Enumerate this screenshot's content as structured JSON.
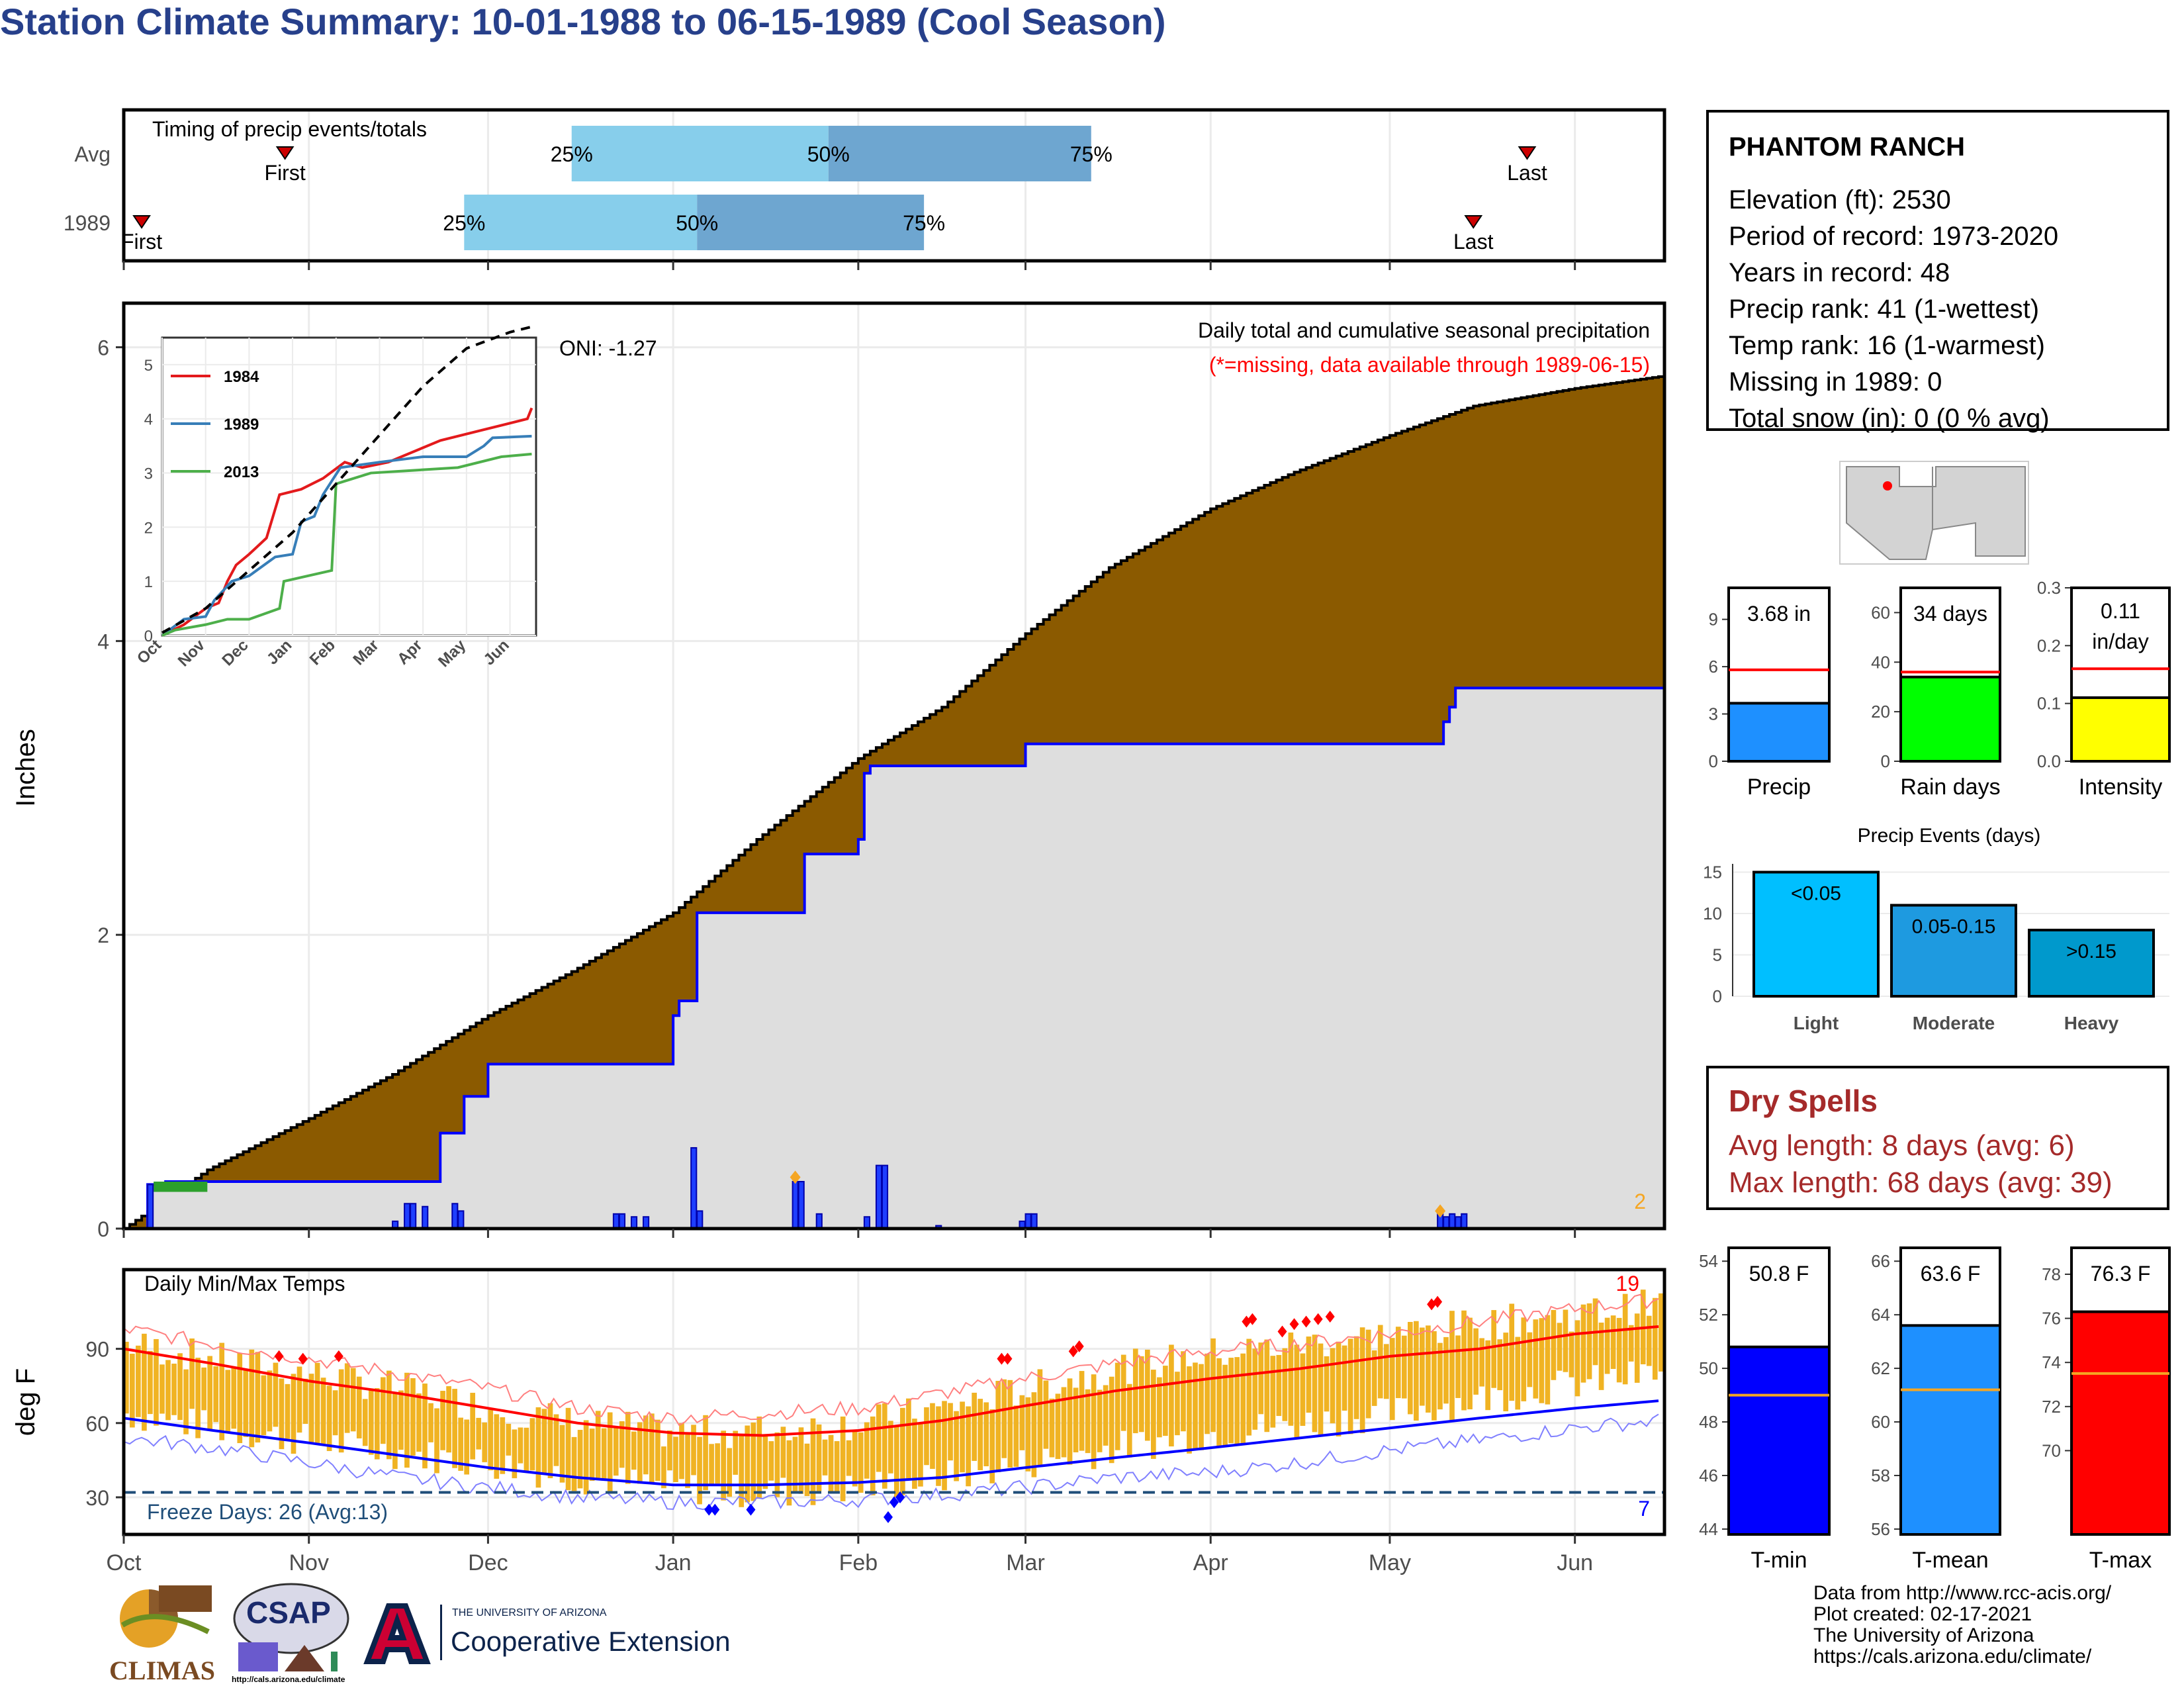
{
  "title": "Station Climate Summary: 10-01-1988 to 06-15-1989 (Cool Season)",
  "station": {
    "name": "PHANTOM RANCH",
    "lines": [
      "Elevation (ft): 2530",
      "Period of record: 1973-2020",
      "Years in record: 48",
      "Precip rank: 41 (1-wettest)",
      "Temp rank: 16 (1-warmest)",
      "Missing in 1989: 0",
      "Total snow (in): 0 (0 % avg)"
    ]
  },
  "dry_spells": {
    "title": "Dry Spells",
    "avg_length": "Avg length: 8 days (avg: 6)",
    "max_length": "Max length: 68 days (avg: 39)"
  },
  "footer": {
    "lines": [
      "Data from http://www.rcc-acis.org/",
      "Plot created: 02-17-2021",
      "The University of Arizona",
      "https://cals.arizona.edu/climate/"
    ]
  },
  "logos": {
    "climas": "CLIMAS",
    "csap": "CSAP",
    "csap_url": "http://cals.arizona.edu/climate",
    "ua_small": "THE UNIVERSITY OF ARIZONA",
    "ua_big": "Cooperative Extension"
  },
  "colors": {
    "title": "#27408b",
    "cum_avg_fill": "#8b5a00",
    "cum_obs_fill": "#dedede",
    "obs_line": "#0000ff",
    "tmax_line": "#ff0000",
    "tmin_line": "#0000ff",
    "temp_bars": "#f0b323",
    "light_blue": "#87ceeb",
    "mid_blue": "#6ea6d0",
    "dry_text": "#a52a2a"
  },
  "chart_data": [
    {
      "type": "bar",
      "id": "timing",
      "title": "Timing of precip events/totals",
      "rows": [
        {
          "label": "Avg",
          "first": "10-28",
          "p25": "12-15",
          "p50": "01-27",
          "p75": "03-12",
          "last": "05-24"
        },
        {
          "label": "1989",
          "first": "10-04",
          "p25": "11-27",
          "p50": "01-05",
          "p75": "02-12",
          "last": "05-15"
        }
      ],
      "markers": [
        "First",
        "Last"
      ],
      "pct_labels": [
        "25%",
        "50%",
        "75%"
      ]
    },
    {
      "type": "area",
      "id": "precip",
      "title": "Daily total and cumulative seasonal precipitation",
      "subtitle": "(*=missing, data available through 1989-06-15)",
      "annotation": "ONI: -1.27",
      "corner_count": "2",
      "ylabel": "Inches",
      "ylim": [
        0,
        6.3
      ],
      "yticks": [
        0,
        2,
        4,
        6
      ],
      "x_ticks": [
        "Oct",
        "Nov",
        "Dec",
        "Jan",
        "Feb",
        "Mar",
        "Apr",
        "May",
        "Jun"
      ],
      "avg_cumulative": {
        "x": [
          "10-01",
          "10-15",
          "11-01",
          "11-15",
          "12-01",
          "12-15",
          "01-01",
          "01-15",
          "02-01",
          "02-15",
          "03-01",
          "03-15",
          "04-01",
          "04-15",
          "05-01",
          "05-15",
          "06-01",
          "06-15"
        ],
        "y": [
          0.0,
          0.4,
          0.75,
          1.05,
          1.45,
          1.75,
          2.15,
          2.65,
          3.2,
          3.55,
          4.05,
          4.5,
          4.9,
          5.15,
          5.4,
          5.6,
          5.72,
          5.8
        ]
      },
      "obs_cumulative": {
        "x": [
          "10-01",
          "10-05",
          "10-08",
          "11-17",
          "11-23",
          "11-27",
          "12-01",
          "12-28",
          "01-01",
          "01-02",
          "01-05",
          "01-22",
          "01-23",
          "02-01",
          "02-02",
          "02-03",
          "02-28",
          "03-01",
          "05-09",
          "05-10",
          "05-11",
          "05-12",
          "06-15"
        ],
        "y": [
          0.0,
          0.3,
          0.32,
          0.32,
          0.65,
          0.9,
          1.12,
          1.12,
          1.45,
          1.55,
          2.15,
          2.15,
          2.55,
          2.65,
          3.1,
          3.15,
          3.15,
          3.3,
          3.3,
          3.45,
          3.55,
          3.68,
          3.68
        ]
      },
      "daily_bars": {
        "x": [
          "10-05",
          "11-15",
          "11-17",
          "11-18",
          "11-20",
          "11-25",
          "11-26",
          "12-22",
          "12-23",
          "12-25",
          "12-27",
          "01-04",
          "01-05",
          "01-21",
          "01-22",
          "01-25",
          "02-02",
          "02-04",
          "02-05",
          "02-14",
          "02-28",
          "03-01",
          "03-02",
          "05-09",
          "05-10",
          "05-11",
          "05-12",
          "05-13"
        ],
        "y": [
          0.3,
          0.05,
          0.17,
          0.17,
          0.15,
          0.17,
          0.12,
          0.1,
          0.1,
          0.08,
          0.08,
          0.55,
          0.12,
          0.32,
          0.32,
          0.1,
          0.08,
          0.43,
          0.43,
          0.02,
          0.05,
          0.1,
          0.1,
          0.1,
          0.08,
          0.1,
          0.08,
          0.1
        ]
      },
      "inset": {
        "type": "line",
        "x_ticks": [
          "Oct",
          "Nov",
          "Dec",
          "Jan",
          "Feb",
          "Mar",
          "Apr",
          "May",
          "Jun"
        ],
        "ylim": [
          0,
          5.5
        ],
        "yticks": [
          0,
          1,
          2,
          3,
          4,
          5
        ],
        "series": [
          {
            "name": "1984",
            "color": "#e31a1c",
            "x": [
              0,
              0.5,
              1.0,
              1.3,
              1.5,
              1.7,
              2.0,
              2.4,
              2.7,
              3.2,
              3.7,
              4.2,
              4.6,
              5.2,
              6.4,
              7.4,
              8.4,
              8.5
            ],
            "y": [
              0,
              0.2,
              0.5,
              0.6,
              1.0,
              1.3,
              1.5,
              1.8,
              2.6,
              2.7,
              2.9,
              3.2,
              3.1,
              3.2,
              3.6,
              3.8,
              4.0,
              4.2
            ]
          },
          {
            "name": "1989",
            "color": "#377eb8",
            "x": [
              0,
              0.5,
              1.0,
              1.2,
              1.6,
              2.0,
              2.6,
              3.0,
              3.2,
              3.5,
              3.7,
              4.1,
              5.0,
              6.0,
              7.0,
              7.4,
              7.6,
              8.5
            ],
            "y": [
              0,
              0.3,
              0.35,
              0.65,
              1.0,
              1.1,
              1.45,
              1.5,
              2.1,
              2.2,
              2.6,
              3.1,
              3.2,
              3.3,
              3.3,
              3.5,
              3.65,
              3.68
            ]
          },
          {
            "name": "2013",
            "color": "#4daf4a",
            "x": [
              0,
              0.3,
              1.0,
              1.5,
              2.0,
              2.7,
              2.8,
              3.9,
              4.0,
              4.8,
              5.8,
              6.8,
              7.8,
              8.5
            ],
            "y": [
              0,
              0.1,
              0.2,
              0.3,
              0.3,
              0.5,
              1.0,
              1.2,
              2.8,
              3.0,
              3.05,
              3.1,
              3.3,
              3.35
            ]
          }
        ],
        "avg_line": {
          "x": [
            0,
            1,
            2,
            3,
            4,
            5,
            6,
            7,
            8,
            8.5
          ],
          "y": [
            0.05,
            0.5,
            1.2,
            1.9,
            2.8,
            3.7,
            4.6,
            5.3,
            5.6,
            5.7
          ]
        }
      }
    },
    {
      "type": "line",
      "id": "temps",
      "title": "Daily Min/Max Temps",
      "ylabel": "deg F",
      "yticks": [
        30,
        60,
        90
      ],
      "ylim": [
        15,
        122
      ],
      "freeze_label": "Freeze Days: 26 (Avg:13)",
      "freeze_line": 32,
      "corner_high": "19",
      "corner_low": "7",
      "x_ticks": [
        "Oct",
        "Nov",
        "Dec",
        "Jan",
        "Feb",
        "Mar",
        "Apr",
        "May",
        "Jun"
      ],
      "avg_tmax": {
        "x": [
          0,
          15,
          31,
          46,
          61,
          76,
          92,
          107,
          123,
          137,
          151,
          166,
          182,
          197,
          212,
          227,
          243,
          257
        ],
        "y": [
          90,
          84,
          77,
          72,
          66,
          60,
          56,
          55,
          57,
          61,
          67,
          73,
          78,
          82,
          87,
          90,
          96,
          99
        ]
      },
      "avg_tmin": {
        "x": [
          0,
          15,
          31,
          46,
          61,
          76,
          92,
          107,
          123,
          137,
          151,
          166,
          182,
          197,
          212,
          227,
          243,
          257
        ],
        "y": [
          62,
          57,
          52,
          47,
          42,
          38,
          35,
          35,
          36,
          38,
          42,
          46,
          50,
          54,
          58,
          62,
          66,
          69
        ]
      },
      "obs_tmax_env": {
        "x": [
          0,
          15,
          31,
          46,
          61,
          76,
          92,
          107,
          123,
          137,
          151,
          166,
          182,
          197,
          212,
          227,
          243,
          257
        ],
        "y": [
          98,
          92,
          86,
          80,
          74,
          66,
          62,
          64,
          66,
          72,
          78,
          84,
          89,
          92,
          96,
          101,
          106,
          110
        ]
      },
      "obs_tmin_env": {
        "x": [
          0,
          15,
          31,
          46,
          61,
          76,
          92,
          107,
          123,
          137,
          151,
          166,
          182,
          197,
          212,
          227,
          243,
          257
        ],
        "y": [
          54,
          50,
          44,
          38,
          34,
          30,
          28,
          28,
          29,
          31,
          34,
          38,
          40,
          44,
          49,
          53,
          58,
          61
        ]
      },
      "obs_range_bars": {
        "x_start": 0,
        "x_end": 257,
        "low_y": [
          64,
          58,
          53,
          48,
          44,
          38,
          34,
          32,
          34,
          38,
          44,
          50,
          56,
          60,
          64,
          70,
          76,
          80
        ],
        "high_y": [
          92,
          86,
          80,
          74,
          66,
          60,
          56,
          57,
          60,
          66,
          74,
          82,
          88,
          92,
          96,
          100,
          104,
          108
        ]
      },
      "record_high_marks": {
        "x": [
          26,
          30,
          36,
          147,
          148,
          159,
          160,
          188,
          189,
          194,
          196,
          198,
          200,
          202,
          219,
          220
        ],
        "y": [
          87,
          86,
          87,
          86,
          86,
          89,
          91,
          101,
          102,
          97,
          100,
          101,
          102,
          103,
          108,
          109
        ]
      },
      "record_low_marks": {
        "x": [
          98,
          99,
          105,
          128,
          129,
          130
        ],
        "y": [
          25,
          25,
          25,
          22,
          28,
          30
        ]
      }
    },
    {
      "type": "bar",
      "id": "precip-bars",
      "categories": [
        "Precip",
        "Rain days",
        "Intensity"
      ],
      "values": [
        3.68,
        34,
        0.11
      ],
      "averages": [
        5.8,
        36,
        0.16
      ],
      "value_labels": [
        "3.68 in",
        "34 days",
        "0.11 in/day"
      ],
      "ylims": [
        [
          0,
          11
        ],
        [
          0,
          70
        ],
        [
          0,
          0.3
        ]
      ],
      "yticks": [
        [
          "0",
          "3",
          "6",
          "9"
        ],
        [
          "0",
          "20",
          "40",
          "60"
        ],
        [
          "0.0",
          "0.1",
          "0.2",
          "0.3"
        ]
      ],
      "colors": [
        "#1e90ff",
        "#00ff00",
        "#ffff00"
      ]
    },
    {
      "type": "bar",
      "id": "events",
      "title": "Precip Events (days)",
      "categories": [
        "Light",
        "Moderate",
        "Heavy"
      ],
      "values": [
        15,
        11,
        8
      ],
      "value_labels": [
        "<0.05",
        "0.05-0.15",
        ">0.15"
      ],
      "ylim": [
        0,
        16
      ],
      "yticks": [
        "0",
        "5",
        "10",
        "15"
      ],
      "colors": [
        "#00bfff",
        "#1e9ae0",
        "#0099cc"
      ]
    },
    {
      "type": "bar",
      "id": "temp-bars",
      "categories": [
        "T-min",
        "T-mean",
        "T-max"
      ],
      "values": [
        50.8,
        63.6,
        76.3
      ],
      "averages": [
        49,
        61.2,
        73.5
      ],
      "value_labels": [
        "50.8 F",
        "63.6 F",
        "76.3 F"
      ],
      "ylims": [
        [
          43.8,
          54.5
        ],
        [
          55.8,
          66.5
        ],
        [
          66.2,
          79.2
        ]
      ],
      "yticks": [
        [
          "44",
          "46",
          "48",
          "50",
          "52",
          "54"
        ],
        [
          "56",
          "58",
          "60",
          "62",
          "64",
          "66"
        ],
        [
          "70",
          "72",
          "74",
          "76",
          "78"
        ]
      ],
      "colors": [
        "#0000ff",
        "#1e90ff",
        "#ff0000"
      ]
    },
    {
      "type": "map",
      "id": "locator-map"
    }
  ]
}
